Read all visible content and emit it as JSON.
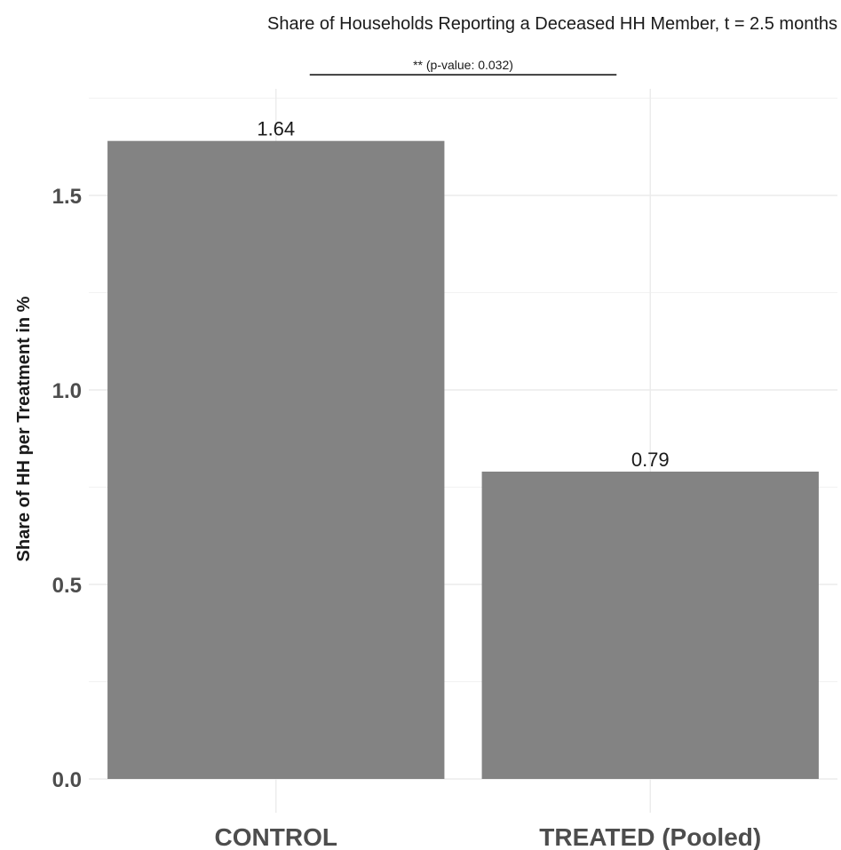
{
  "chart_data": {
    "type": "bar",
    "title": "Share of Households Reporting a Deceased HH Member, t = 2.5 months",
    "xlabel": "",
    "ylabel": "Share of HH per Treatment in %",
    "categories": [
      "CONTROL",
      "TREATED (Pooled)"
    ],
    "values": [
      1.64,
      0.79
    ],
    "value_labels": [
      "1.64",
      "0.79"
    ],
    "ylim": [
      0,
      1.75
    ],
    "yticks": [
      0.0,
      0.5,
      1.0,
      1.5
    ],
    "ytick_labels": [
      "0.0",
      "0.5",
      "1.0",
      "1.5"
    ],
    "grid": true,
    "legend": "none",
    "bar_color": "#7f7f7f",
    "annotation": {
      "text": "** (p-value: 0.032)",
      "from": "CONTROL",
      "to": "TREATED (Pooled)",
      "y": 1.81
    }
  }
}
